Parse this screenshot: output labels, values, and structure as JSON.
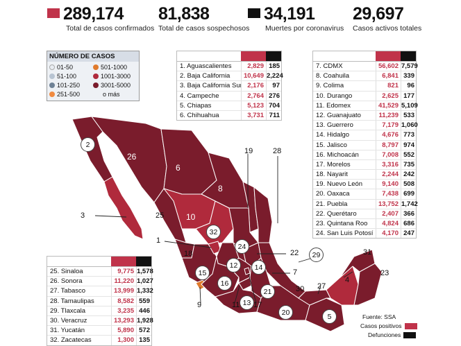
{
  "stats": [
    {
      "value": "289,174",
      "label": "Total de casos confirmados",
      "color": "#c0334a"
    },
    {
      "value": "81,838",
      "label": "Total de casos sospechosos",
      "color": ""
    },
    {
      "value": "34,191",
      "label": "Muertes por coronavirus",
      "color": "#111111"
    },
    {
      "value": "29,697",
      "label": "Casos activos totales",
      "color": ""
    }
  ],
  "legend": {
    "title": "NÚMERO DE CASOS",
    "items": [
      {
        "label": "01-50",
        "color": "#e9edf2"
      },
      {
        "label": "501-1000",
        "color": "#e07a2c"
      },
      {
        "label": "51-100",
        "color": "#b8c4d2"
      },
      {
        "label": "1001-3000",
        "color": "#b02a3c"
      },
      {
        "label": "101-250",
        "color": "#6f8296"
      },
      {
        "label": "3001-5000",
        "color": "#7a1c2c"
      },
      {
        "label": "251-500",
        "color": "#f08a40"
      },
      {
        "label": "o más",
        "color": ""
      }
    ]
  },
  "tables": {
    "left_top": [
      {
        "name": "1. Aguascalientes",
        "pos": "2,829",
        "def": "185"
      },
      {
        "name": "2. Baja California",
        "pos": "10,649",
        "def": "2,224"
      },
      {
        "name": "3. Baja California Sur",
        "pos": "2,176",
        "def": "97"
      },
      {
        "name": "4. Campeche",
        "pos": "2,764",
        "def": "276"
      },
      {
        "name": "5. Chiapas",
        "pos": "5,123",
        "def": "704"
      },
      {
        "name": "6. Chihuahua",
        "pos": "3,731",
        "def": "711"
      }
    ],
    "right": [
      {
        "name": "7. CDMX",
        "pos": "56,602",
        "def": "7,579"
      },
      {
        "name": "8. Coahuila",
        "pos": "6,841",
        "def": "339"
      },
      {
        "name": "9. Colima",
        "pos": "821",
        "def": "96"
      },
      {
        "name": "10. Durango",
        "pos": "2,625",
        "def": "177"
      },
      {
        "name": "11. Edomex",
        "pos": "41,529",
        "def": "5,109"
      },
      {
        "name": "12. Guanajuato",
        "pos": "11,239",
        "def": "533"
      },
      {
        "name": "13. Guerrero",
        "pos": "7,179",
        "def": "1,060"
      },
      {
        "name": "14. Hidalgo",
        "pos": "4,676",
        "def": "773"
      },
      {
        "name": "15. Jalisco",
        "pos": "8,797",
        "def": "974"
      },
      {
        "name": "16. Michoacán",
        "pos": "7,008",
        "def": "552"
      },
      {
        "name": "17. Morelos",
        "pos": "3,316",
        "def": "735"
      },
      {
        "name": "18. Nayarit",
        "pos": "2,244",
        "def": "242"
      },
      {
        "name": "19. Nuevo León",
        "pos": "9,140",
        "def": "508"
      },
      {
        "name": "20. Oaxaca",
        "pos": "7,438",
        "def": "699"
      },
      {
        "name": "21. Puebla",
        "pos": "13,752",
        "def": "1,742"
      },
      {
        "name": "22. Querétaro",
        "pos": "2,407",
        "def": "366"
      },
      {
        "name": "23. Quintana Roo",
        "pos": "4,824",
        "def": "686"
      },
      {
        "name": "24. San Luis Potosí",
        "pos": "4,170",
        "def": "247"
      }
    ],
    "left_bottom": [
      {
        "name": "25. Sinaloa",
        "pos": "9,775",
        "def": "1,578"
      },
      {
        "name": "26. Sonora",
        "pos": "11,220",
        "def": "1,027"
      },
      {
        "name": "27. Tabasco",
        "pos": "13,999",
        "def": "1,332"
      },
      {
        "name": "28. Tamaulipas",
        "pos": "8,582",
        "def": "559"
      },
      {
        "name": "29. Tlaxcala",
        "pos": "3,235",
        "def": "446"
      },
      {
        "name": "30. Veracruz",
        "pos": "13,293",
        "def": "1,928"
      },
      {
        "name": "31. Yucatán",
        "pos": "5,890",
        "def": "572"
      },
      {
        "name": "32. Zacatecas",
        "pos": "1,300",
        "def": "135"
      }
    ]
  },
  "map_labels": [
    "2",
    "26",
    "6",
    "19",
    "28",
    "8",
    "3",
    "10",
    "25",
    "32",
    "1",
    "24",
    "22",
    "29",
    "18",
    "12",
    "14",
    "7",
    "15",
    "16",
    "21",
    "30",
    "27",
    "4",
    "31",
    "23",
    "13",
    "20",
    "5",
    "9",
    "11",
    "17"
  ],
  "footer": {
    "source": "Fuente: SSA",
    "positive": "Casos positivos",
    "deaths": "Defunciones",
    "positive_color": "#c0334a",
    "deaths_color": "#111111"
  },
  "colors": {
    "map_dark": "#7a1c2c",
    "map_mid": "#b02a3c",
    "map_orange": "#e07a2c"
  }
}
